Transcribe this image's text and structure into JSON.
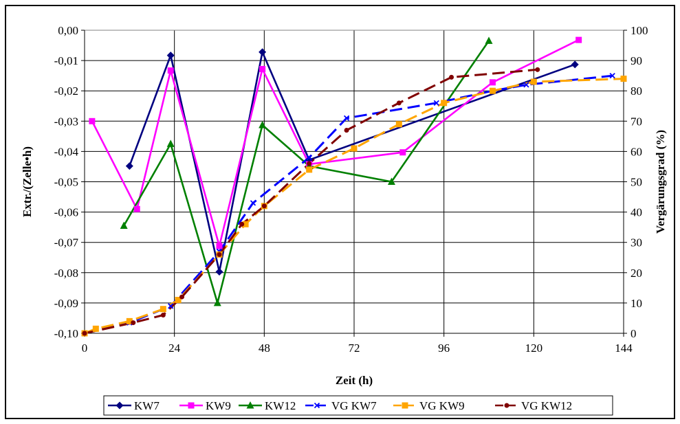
{
  "chart_data": {
    "type": "line",
    "xlabel": "Zeit (h)",
    "ylabel": "Extr./(Zelle•h)",
    "y2label": "Vergärungsgrad (%)",
    "xlim": [
      0,
      144
    ],
    "ylim": [
      -0.1,
      0.0
    ],
    "y2lim": [
      0,
      100
    ],
    "xticks": [
      "0",
      "24",
      "48",
      "72",
      "96",
      "120",
      "144"
    ],
    "yticks": [
      "0,00",
      "-0,01",
      "-0,02",
      "-0,03",
      "-0,04",
      "-0,05",
      "-0,06",
      "-0,07",
      "-0,08",
      "-0,09",
      "-0,10"
    ],
    "y2ticks": [
      "100",
      "90",
      "80",
      "70",
      "60",
      "50",
      "40",
      "30",
      "20",
      "10",
      "0"
    ],
    "grid": true,
    "legend": "bottom",
    "series": [
      {
        "name": "KW7",
        "axis": "left",
        "color": "#000080",
        "marker": "diamond",
        "dash": "solid",
        "points": [
          [
            12,
            -0.0448
          ],
          [
            23,
            -0.0083
          ],
          [
            36,
            -0.0797
          ],
          [
            47.5,
            -0.0072
          ],
          [
            60,
            -0.0428
          ],
          [
            131,
            -0.0113
          ]
        ]
      },
      {
        "name": "KW9",
        "axis": "left",
        "color": "#FF00FF",
        "marker": "square",
        "dash": "solid",
        "points": [
          [
            2,
            -0.03
          ],
          [
            14,
            -0.059
          ],
          [
            23,
            -0.0133
          ],
          [
            36,
            -0.0712
          ],
          [
            47.5,
            -0.0128
          ],
          [
            60,
            -0.0442
          ],
          [
            85,
            -0.0403
          ],
          [
            109,
            -0.0172
          ],
          [
            132,
            -0.0032
          ]
        ]
      },
      {
        "name": "KW12",
        "axis": "left",
        "color": "#008000",
        "marker": "triangle",
        "dash": "solid",
        "points": [
          [
            10.5,
            -0.0645
          ],
          [
            23,
            -0.0375
          ],
          [
            35.5,
            -0.09
          ],
          [
            47.5,
            -0.0313
          ],
          [
            60,
            -0.0448
          ],
          [
            82,
            -0.05
          ],
          [
            108,
            -0.0035
          ]
        ]
      },
      {
        "name": "VG KW7",
        "axis": "right",
        "color": "#0000FF",
        "marker": "x",
        "dash": "long",
        "points": [
          [
            0,
            0
          ],
          [
            12,
            3.5
          ],
          [
            23,
            9
          ],
          [
            36,
            27
          ],
          [
            45,
            43
          ],
          [
            60,
            58
          ],
          [
            70,
            71
          ],
          [
            94,
            76
          ],
          [
            109,
            80
          ],
          [
            118,
            82
          ],
          [
            141,
            85
          ]
        ]
      },
      {
        "name": "VG KW9",
        "axis": "right",
        "color": "#FFA500",
        "marker": "square",
        "dash": "long",
        "points": [
          [
            0,
            0
          ],
          [
            3,
            1.5
          ],
          [
            12,
            4
          ],
          [
            21,
            8
          ],
          [
            25,
            11
          ],
          [
            36,
            26
          ],
          [
            43,
            36
          ],
          [
            48,
            42
          ],
          [
            60,
            54
          ],
          [
            72,
            61
          ],
          [
            84,
            69
          ],
          [
            96,
            76
          ],
          [
            109,
            80
          ],
          [
            120,
            83
          ],
          [
            144,
            84
          ]
        ]
      },
      {
        "name": "VG KW12",
        "axis": "right",
        "color": "#800000",
        "marker": "circle",
        "dash": "long",
        "points": [
          [
            0,
            0
          ],
          [
            13,
            3.5
          ],
          [
            21,
            6
          ],
          [
            26,
            12
          ],
          [
            36,
            26
          ],
          [
            42,
            36
          ],
          [
            48,
            42
          ],
          [
            60,
            56
          ],
          [
            70,
            67
          ],
          [
            84,
            76
          ],
          [
            98,
            84.5
          ],
          [
            121,
            87
          ]
        ]
      }
    ]
  }
}
